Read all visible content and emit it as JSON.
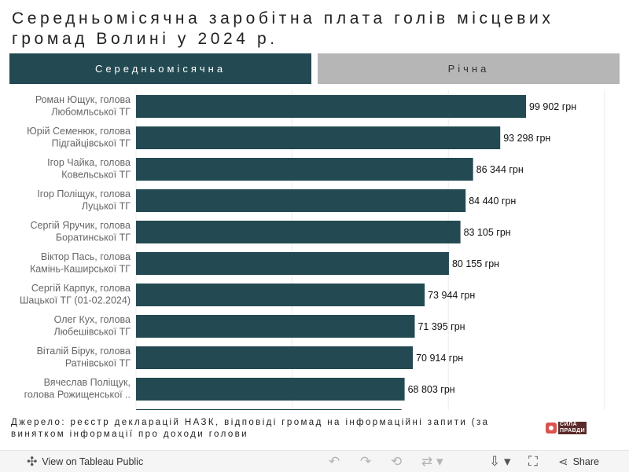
{
  "title": "Середньомісячна заробітна плата голів місцевих громад Волині у 2024 р.",
  "tabs": {
    "monthly": "Середньомісячна",
    "yearly": "Річна"
  },
  "chart_data": {
    "type": "bar",
    "orientation": "horizontal",
    "unit": "грн",
    "xlim": [
      0,
      120000
    ],
    "grid": true,
    "categories": [
      [
        "Роман Ющук, голова",
        "Любомльської ТГ"
      ],
      [
        "Юрій Семенюк, голова",
        "Підгайцівської ТГ"
      ],
      [
        "Ігор Чайка, голова",
        "Ковельської ТГ"
      ],
      [
        "Ігор Поліщук, голова",
        "Луцької ТГ"
      ],
      [
        "Сергій Яручик, голова",
        "Боратинської ТГ"
      ],
      [
        "Віктор Пась, голова",
        "Камінь-Каширської ТГ"
      ],
      [
        "Сергій Карпук, голова",
        "Шацької ТГ (01-02.2024)"
      ],
      [
        "Олег Кух, голова",
        "Любешівської ТГ"
      ],
      [
        "Віталій Бірук, голова",
        "Ратнівської ТГ"
      ],
      [
        "Вячеслав Поліщук,",
        "голова Рожищенської .."
      ]
    ],
    "values": [
      99902,
      93298,
      86344,
      84440,
      83105,
      80155,
      73944,
      71395,
      70914,
      68803
    ],
    "value_labels": [
      "99 902 грн",
      "93 298 грн",
      "86 344 грн",
      "84 440 грн",
      "83 105 грн",
      "80 155 грн",
      "73 944 грн",
      "71 395 грн",
      "70 914 грн",
      "68 803 грн"
    ],
    "partial_next_value": 68000,
    "bar_color": "#234a52"
  },
  "source": "Джерело: реєстр декларацій НАЗК, відповіді громад на інформаційні запити (за винятком інформації про доходи голови",
  "logo": {
    "line1": "СИЛА",
    "line2": "ПРАВДИ"
  },
  "footer": {
    "view_label": "View on Tableau Public",
    "share_label": "Share",
    "icons": [
      "tableau-icon",
      "undo-icon",
      "redo-icon",
      "revert-icon",
      "refresh-icon",
      "download-icon",
      "fullscreen-icon",
      "share-icon"
    ]
  }
}
